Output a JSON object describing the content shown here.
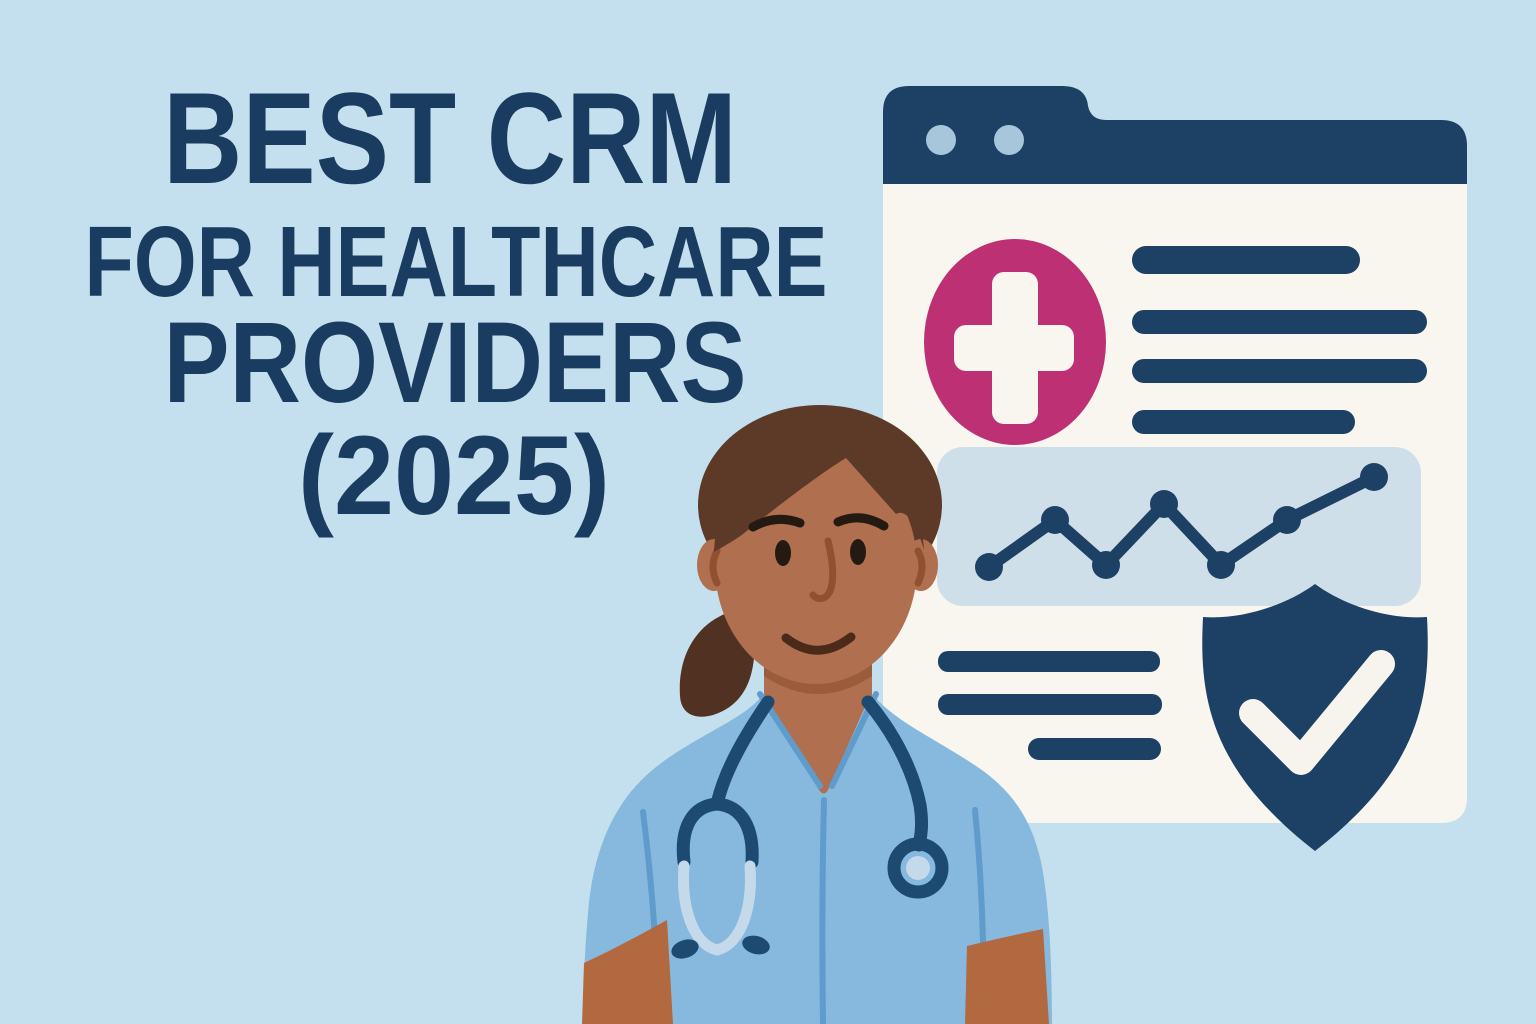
{
  "title": {
    "line1": "BEST CRM",
    "line2": "FOR HEALTHCARE",
    "line3": "PROVIDERS",
    "line4": "(2025)"
  },
  "colors": {
    "bg": "#c4e0ee",
    "title-navy": "#1b3c61",
    "navy": "#1d4065",
    "window-bg": "#f8f6ef",
    "tab-dot": "#a7c6dc",
    "magenta": "#bd3174",
    "panel": "#cfdfe9",
    "check": "#f6f4ed",
    "skin": "#b06f4e",
    "skin-shadow": "#9a5c3b",
    "arm": "#b2693f",
    "hair": "#5d3a27",
    "ponytail": "#503122",
    "scrub": "#87b9de",
    "seam": "#5f9bcb",
    "steth": "#1d4a70",
    "steth-light": "#c4d9e9",
    "eye": "#241a12",
    "mouth": "#4a2a18",
    "nose": "#8f5130"
  },
  "illustration": {
    "scene": "healthcare-crm-hero-graphic",
    "browser_window": {
      "tab_dot_count": 2,
      "content_blocks": [
        "medical-cross-badge",
        "text-skeleton-lines-right",
        "trend-chart-panel",
        "text-skeleton-lines-bottom",
        "security-shield-check"
      ]
    },
    "trend": {
      "points": [
        [
          989,
          567
        ],
        [
          1055,
          520
        ],
        [
          1106,
          565
        ],
        [
          1164,
          504
        ],
        [
          1221,
          565
        ],
        [
          1287,
          520
        ],
        [
          1374,
          477
        ]
      ],
      "point_radius": 14
    },
    "person": {
      "description": "nurse-with-stethoscope"
    }
  }
}
